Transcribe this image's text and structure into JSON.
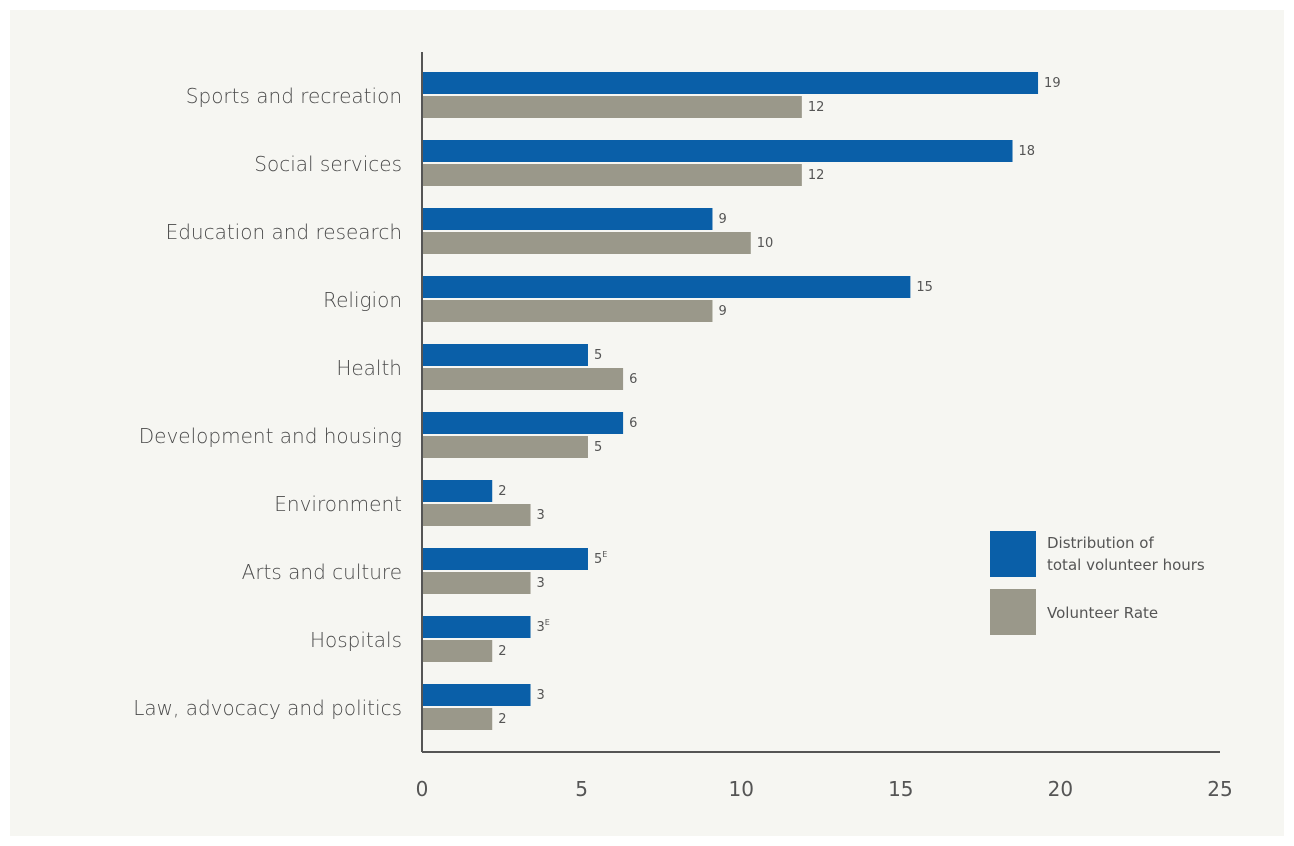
{
  "chart_data": {
    "type": "bar",
    "orientation": "horizontal",
    "categories": [
      "Sports and recreation",
      "Social services",
      "Education and research",
      "Religion",
      "Health",
      "Development and housing",
      "Environment",
      "Arts and culture",
      "Hospitals",
      "Law, advocacy and politics"
    ],
    "series": [
      {
        "name": "Distribution of total volunteer hours",
        "legend_lines": [
          "Distribution of",
          "total volunteer hours"
        ],
        "color": "#0a5fa8",
        "values": [
          19,
          18,
          9,
          15,
          5,
          6,
          2,
          5,
          3,
          3
        ],
        "bar_lengths": [
          19.3,
          18.5,
          9.1,
          15.3,
          5.2,
          6.3,
          2.2,
          5.2,
          3.4,
          3.4
        ],
        "label_flags": [
          "",
          "",
          "",
          "",
          "",
          "",
          "",
          "E",
          "E",
          ""
        ]
      },
      {
        "name": "Volunteer Rate",
        "legend_lines": [
          "Volunteer Rate"
        ],
        "color": "#9a988a",
        "values": [
          12,
          12,
          10,
          9,
          6,
          5,
          3,
          3,
          2,
          2
        ],
        "bar_lengths": [
          11.9,
          11.9,
          10.3,
          9.1,
          6.3,
          5.2,
          3.4,
          3.4,
          2.2,
          2.2
        ],
        "label_flags": [
          "",
          "",
          "",
          "",
          "",
          "",
          "",
          "",
          "",
          ""
        ]
      }
    ],
    "xlim": [
      0,
      25
    ],
    "xticks": [
      0,
      5,
      10,
      15,
      20,
      25
    ],
    "title": "",
    "xlabel": "",
    "ylabel": "",
    "grid": false,
    "legend_position": "right"
  }
}
